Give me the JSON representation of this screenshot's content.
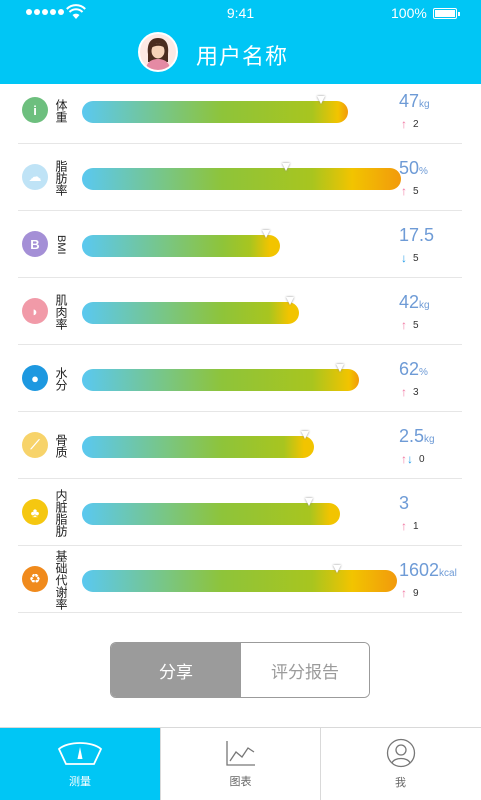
{
  "status_bar": {
    "time": "9:41",
    "battery": "100%"
  },
  "header": {
    "username": "用户名称"
  },
  "metrics": [
    {
      "label": "体重",
      "value": "47",
      "unit": "kg",
      "change_dir": "up",
      "change": "2",
      "level": 0.7,
      "pointer": 0.9,
      "icon": "person-icon",
      "icon_color": "#6dbf7e"
    },
    {
      "label": "脂肪率",
      "value": "50",
      "unit": "%",
      "change_dir": "up",
      "change": "5",
      "level": 0.84,
      "pointer": 0.64,
      "icon": "body-fat-icon",
      "icon_color": "#bfe3f6"
    },
    {
      "label": "BMI",
      "value": "17.5",
      "unit": "",
      "change_dir": "down",
      "change": "5",
      "level": 0.52,
      "pointer": 0.93,
      "icon": "bmi-icon",
      "icon_color": "#a48fd6"
    },
    {
      "label": "肌肉率",
      "value": "42",
      "unit": "kg",
      "change_dir": "up",
      "change": "5",
      "level": 0.57,
      "pointer": 0.96,
      "icon": "muscle-icon",
      "icon_color": "#f19aa8"
    },
    {
      "label": "水分",
      "value": "62",
      "unit": "%",
      "change_dir": "up",
      "change": "3",
      "level": 0.73,
      "pointer": 0.93,
      "icon": "water-drop-icon",
      "icon_color": "#1d98e0"
    },
    {
      "label": "骨质",
      "value": "2.5",
      "unit": "kg",
      "change_dir": "both",
      "change": "0",
      "level": 0.61,
      "pointer": 0.96,
      "icon": "bone-icon",
      "icon_color": "#f7d36a"
    },
    {
      "label": "内脏脂肪",
      "value": "3",
      "unit": "",
      "change_dir": "up",
      "change": "1",
      "level": 0.68,
      "pointer": 0.88,
      "icon": "lungs-icon",
      "icon_color": "#f5c710"
    },
    {
      "label": "基础代谢率",
      "value": "1602",
      "unit": "kcal",
      "change_dir": "up",
      "change": "9",
      "level": 0.83,
      "pointer": 0.81,
      "icon": "recycle-icon",
      "icon_color": "#f08a1c"
    }
  ],
  "actions": {
    "share": "分享",
    "report": "评分报告"
  },
  "tabbar": {
    "measure": "测量",
    "chart": "图表",
    "me": "我"
  }
}
